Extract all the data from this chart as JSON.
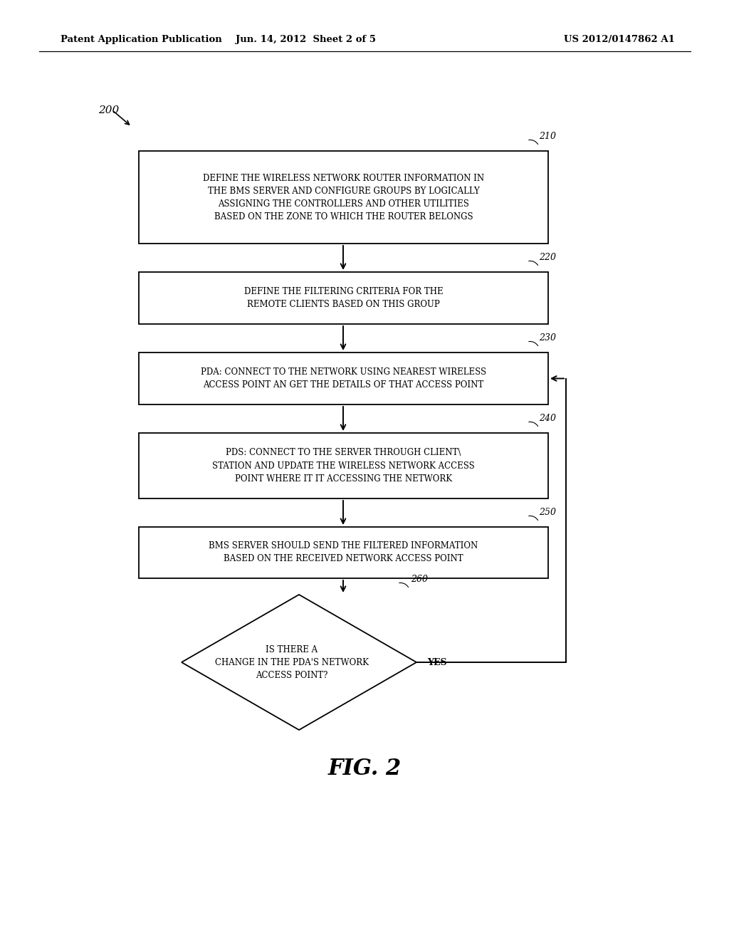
{
  "bg_color": "#ffffff",
  "header_left": "Patent Application Publication",
  "header_mid": "Jun. 14, 2012  Sheet 2 of 5",
  "header_right": "US 2012/0147862 A1",
  "fig_label": "FIG. 2",
  "diagram_label": "200",
  "box210_text": "DEFINE THE WIRELESS NETWORK ROUTER INFORMATION IN\nTHE BMS SERVER AND CONFIGURE GROUPS BY LOGICALLY\nASSIGNING THE CONTROLLERS AND OTHER UTILITIES\nBASED ON THE ZONE TO WHICH THE ROUTER BELONGS",
  "box220_text": "DEFINE THE FILTERING CRITERIA FOR THE\nREMOTE CLIENTS BASED ON THIS GROUP",
  "box230_text": "PDA: CONNECT TO THE NETWORK USING NEAREST WIRELESS\nACCESS POINT AN GET THE DETAILS OF THAT ACCESS POINT",
  "box240_text": "PDS: CONNECT TO THE SERVER THROUGH CLIENT\\\nSTATION AND UPDATE THE WIRELESS NETWORK ACCESS\nPOINT WHERE IT IT ACCESSING THE NETWORK",
  "box250_text": "BMS SERVER SHOULD SEND THE FILTERED INFORMATION\nBASED ON THE RECEIVED NETWORK ACCESS POINT",
  "diamond_text": "IS THERE A\nCHANGE IN THE PDA'S NETWORK\nACCESS POINT?",
  "yes_label": "YES",
  "font_size_box": 8.5,
  "font_size_header": 9.5,
  "font_size_ref": 9,
  "font_size_label": 11,
  "font_size_fig": 22,
  "font_size_yes": 9
}
